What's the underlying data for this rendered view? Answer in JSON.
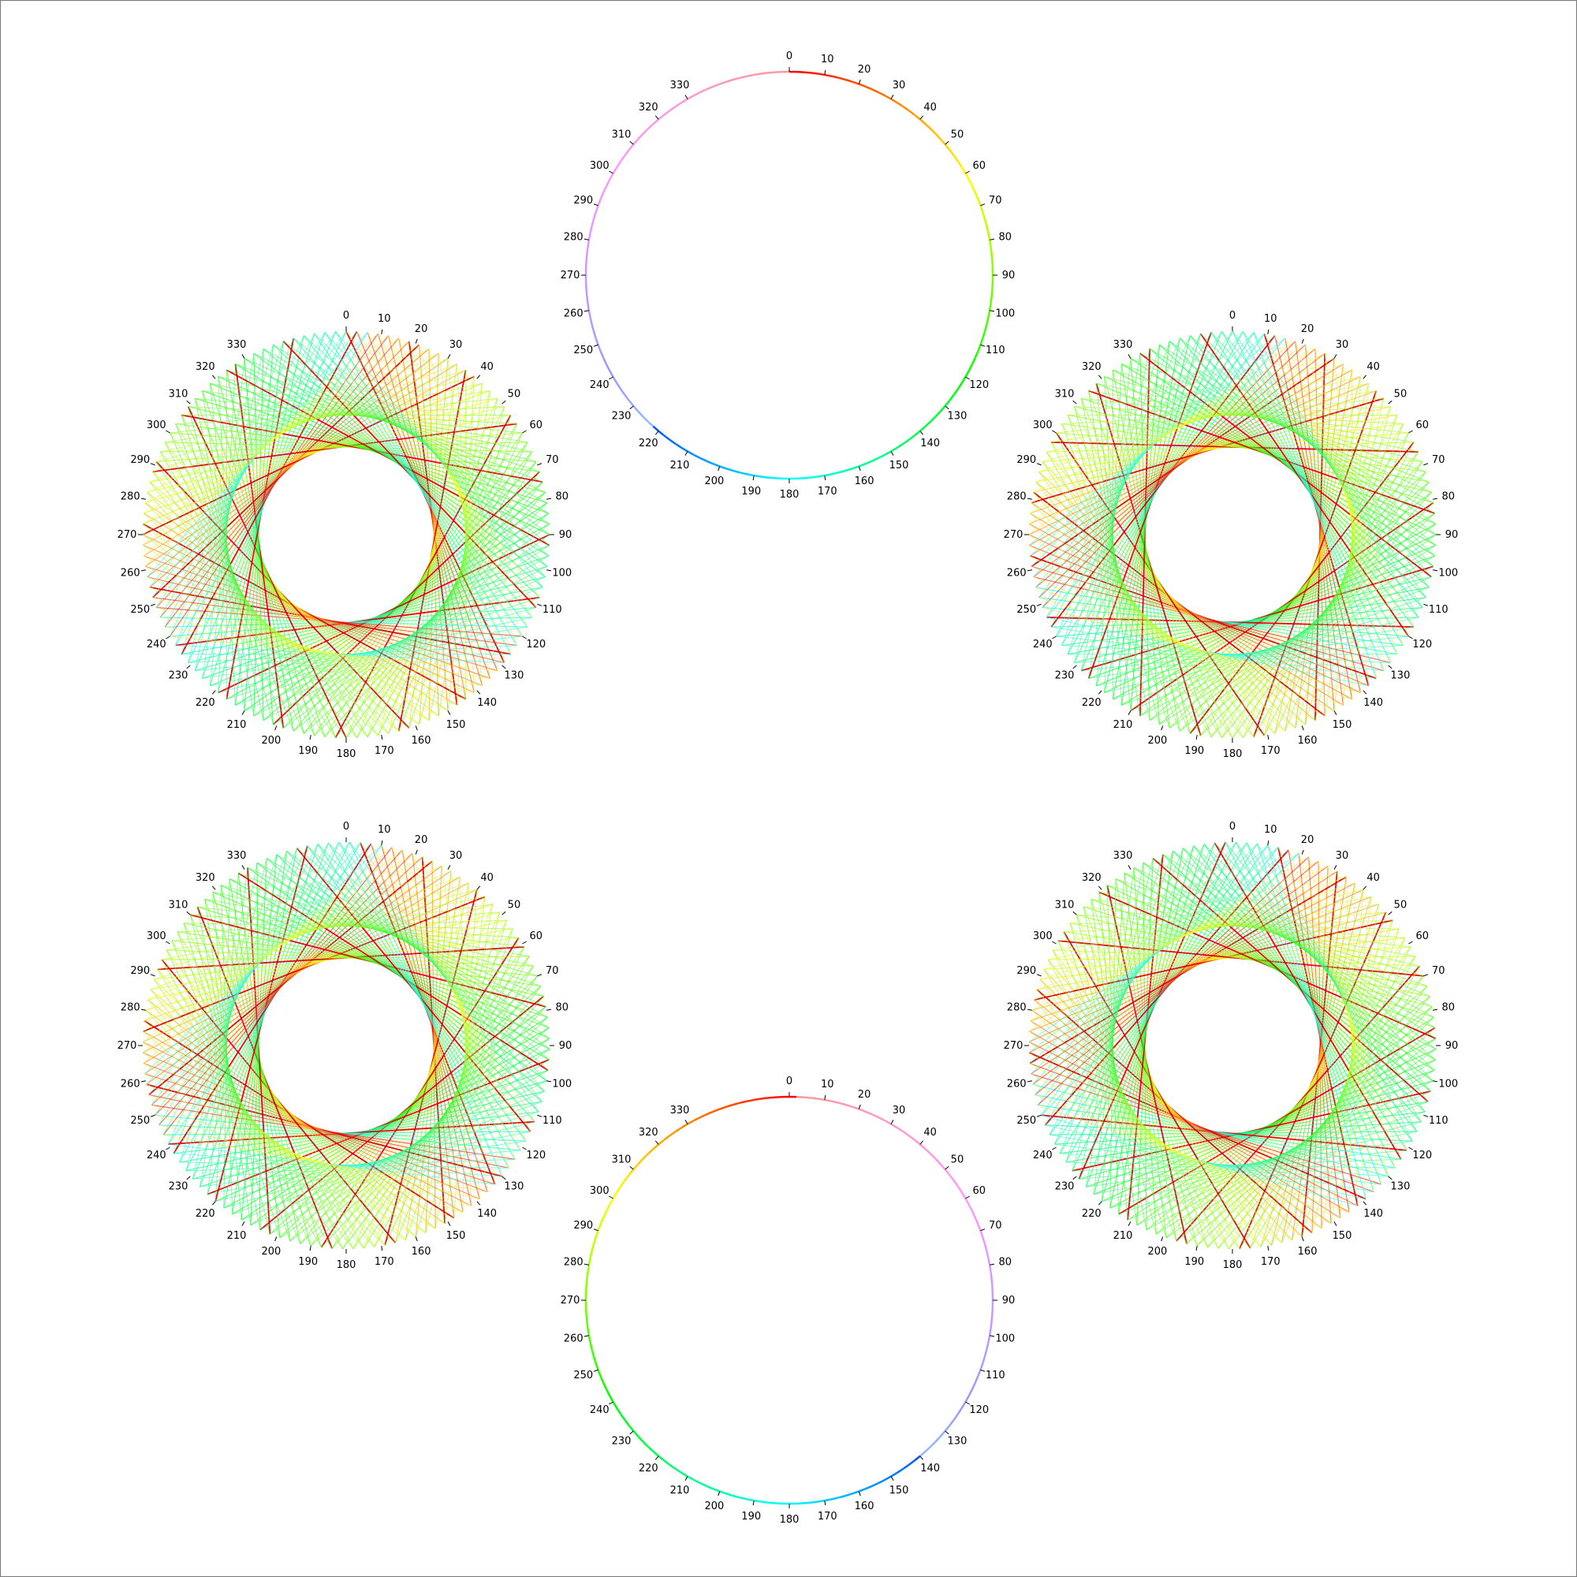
{
  "figure": {
    "background": "#ffffff",
    "frame_color": "#777777",
    "tick_color": "#000000"
  },
  "rings": [
    {
      "id": "ring-top",
      "kind": "circle",
      "label_degrees": [
        0,
        10,
        20,
        30,
        40,
        50,
        60,
        70,
        80,
        90,
        100,
        110,
        120,
        130,
        140,
        150,
        160,
        170,
        180,
        190,
        200,
        210,
        220,
        230,
        240,
        250,
        260,
        270,
        280,
        290,
        300,
        310,
        320,
        330
      ],
      "hue_start_deg": 0,
      "hue_direction": 1
    },
    {
      "id": "ring-bottom",
      "kind": "circle",
      "label_degrees": [
        0,
        10,
        20,
        30,
        40,
        50,
        60,
        70,
        80,
        90,
        100,
        110,
        120,
        130,
        140,
        150,
        160,
        170,
        180,
        190,
        200,
        210,
        220,
        230,
        240,
        250,
        260,
        270,
        280,
        290,
        300,
        310,
        320,
        330
      ],
      "hue_start_deg": 0,
      "hue_direction": -1
    },
    {
      "id": "string-art-upper-left",
      "kind": "string-art",
      "label_degrees": [
        0,
        10,
        20,
        30,
        40,
        50,
        60,
        70,
        80,
        90,
        100,
        110,
        120,
        130,
        140,
        150,
        160,
        170,
        180,
        190,
        200,
        210,
        220,
        230,
        240,
        250,
        260,
        270,
        280,
        290,
        300,
        310,
        320,
        330
      ],
      "points": 120,
      "chord_step": 43,
      "rotation": 0
    },
    {
      "id": "string-art-upper-right",
      "kind": "string-art",
      "label_degrees": [
        0,
        10,
        20,
        30,
        40,
        50,
        60,
        70,
        80,
        90,
        100,
        110,
        120,
        130,
        140,
        150,
        160,
        170,
        180,
        190,
        200,
        210,
        220,
        230,
        240,
        250,
        260,
        270,
        280,
        290,
        300,
        310,
        320,
        330
      ],
      "points": 120,
      "chord_step": 43,
      "rotation": 9
    },
    {
      "id": "string-art-lower-left",
      "kind": "string-art",
      "label_degrees": [
        0,
        10,
        20,
        30,
        40,
        50,
        60,
        70,
        80,
        90,
        100,
        110,
        120,
        130,
        140,
        150,
        160,
        170,
        180,
        190,
        200,
        210,
        220,
        230,
        240,
        250,
        260,
        270,
        280,
        290,
        300,
        310,
        320,
        330
      ],
      "points": 120,
      "chord_step": 43,
      "rotation": 4
    },
    {
      "id": "string-art-lower-right",
      "kind": "string-art",
      "label_degrees": [
        0,
        10,
        20,
        30,
        40,
        50,
        60,
        70,
        80,
        90,
        100,
        110,
        120,
        130,
        140,
        150,
        160,
        170,
        180,
        190,
        200,
        210,
        220,
        230,
        240,
        250,
        260,
        270,
        280,
        290,
        300,
        310,
        320,
        330
      ],
      "points": 120,
      "chord_step": 43,
      "rotation": 13
    }
  ]
}
